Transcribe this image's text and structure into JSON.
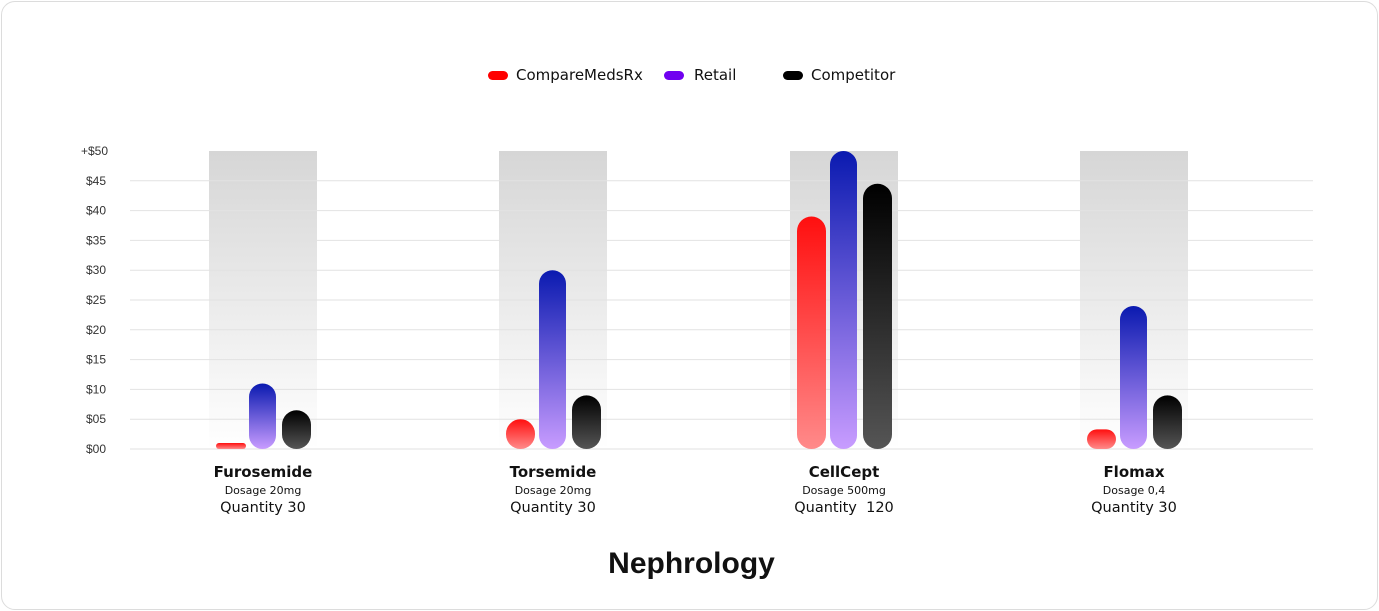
{
  "chart_data": {
    "type": "bar",
    "title": "Nephrology",
    "categories": [
      "Furosemide",
      "Torsemide",
      "CellCept",
      "Flomax"
    ],
    "category_details": [
      {
        "dosage": "Dosage 20mg",
        "quantity": "Quantity 30"
      },
      {
        "dosage": "Dosage 20mg",
        "quantity": "Quantity 30"
      },
      {
        "dosage": "Dosage 500mg",
        "quantity": "Quantity  120"
      },
      {
        "dosage": "Dosage 0,4",
        "quantity": "Quantity 30"
      }
    ],
    "series": [
      {
        "name": "CompareMedsRx",
        "color": "#ff0000",
        "values": [
          1,
          5,
          39,
          3.3
        ]
      },
      {
        "name": "Retail",
        "color": "#7000f0",
        "values": [
          11,
          30,
          50,
          24
        ]
      },
      {
        "name": "Competitor",
        "color": "#000000",
        "values": [
          6.5,
          9,
          44.5,
          9
        ]
      }
    ],
    "yticks": [
      "$00",
      "$05",
      "$10",
      "$15",
      "$20",
      "$25",
      "$30",
      "$35",
      "$40",
      "$45",
      "+$50"
    ],
    "ylim": [
      0,
      50
    ],
    "grid": true,
    "legend": "top-center"
  }
}
